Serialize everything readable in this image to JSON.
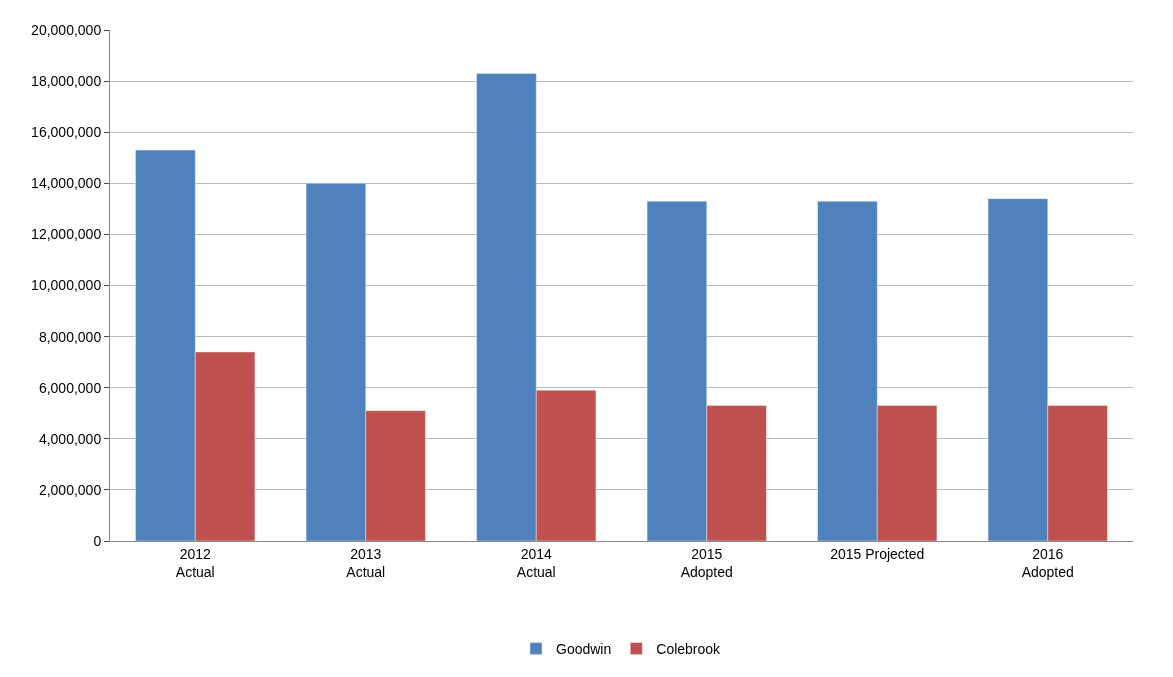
{
  "chart_data": {
    "type": "bar",
    "categories": [
      "2012\nActual",
      "2013\nActual",
      "2014\nActual",
      "2015\nAdopted",
      "2015 Projected",
      "2016\nAdopted"
    ],
    "series": [
      {
        "name": "Goodwin",
        "color": "#4f81bd",
        "values": [
          15300000,
          14000000,
          18300000,
          13300000,
          13300000,
          13400000
        ]
      },
      {
        "name": "Colebrook",
        "color": "#c0504d",
        "values": [
          7400000,
          5100000,
          5900000,
          5300000,
          5300000,
          5300000
        ]
      }
    ],
    "ylim": [
      0,
      20000000
    ],
    "yticks": [
      {
        "value": 0,
        "label": "0"
      },
      {
        "value": 2000000,
        "label": "2,000,000"
      },
      {
        "value": 4000000,
        "label": "4,000,000"
      },
      {
        "value": 6000000,
        "label": "6,000,000"
      },
      {
        "value": 8000000,
        "label": "8,000,000"
      },
      {
        "value": 10000000,
        "label": "10,000,000"
      },
      {
        "value": 12000000,
        "label": "12,000,000"
      },
      {
        "value": 14000000,
        "label": "14,000,000"
      },
      {
        "value": 16000000,
        "label": "16,000,000"
      },
      {
        "value": 18000000,
        "label": "18,000,000"
      },
      {
        "value": 20000000,
        "label": "20,000,000"
      }
    ],
    "grid": "y",
    "legend": "bottom"
  }
}
